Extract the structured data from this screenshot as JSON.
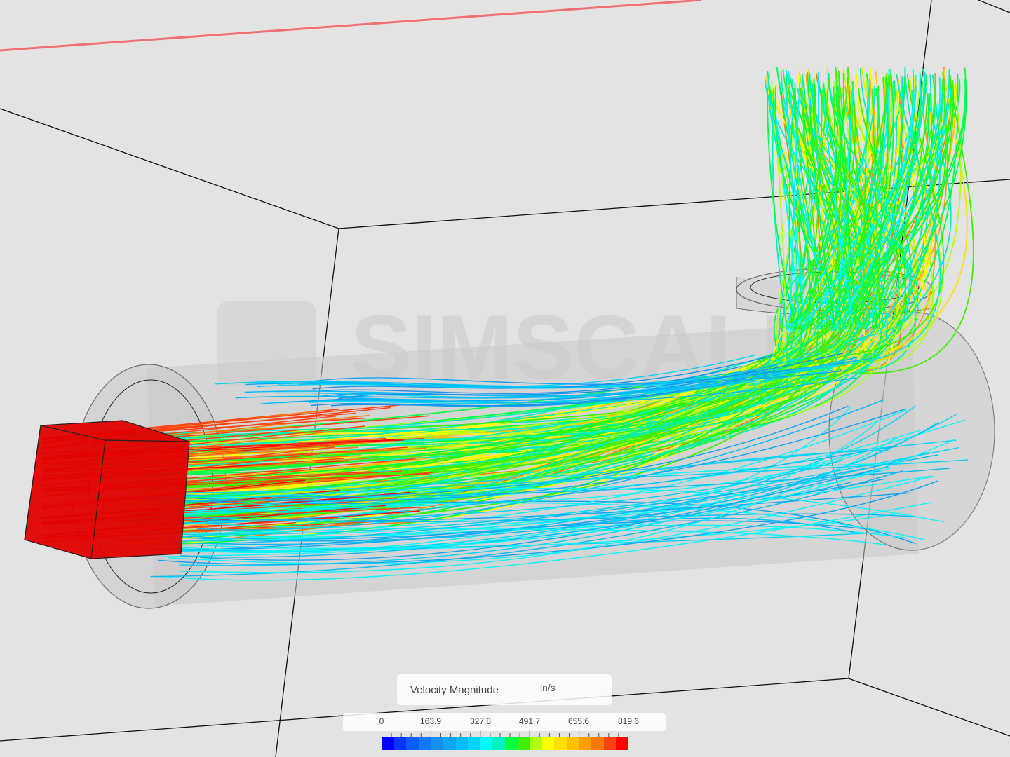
{
  "legend": {
    "title": "Velocity Magnitude",
    "unit": "in/s",
    "tick_labels": [
      "0",
      "163.9",
      "327.8",
      "491.7",
      "655.6",
      "819.6"
    ],
    "min": 0,
    "max": 819.6,
    "colors": [
      "#0000ff",
      "#0a36ff",
      "#0a5cff",
      "#0f78f8",
      "#1490f0",
      "#10a4f4",
      "#00bcf8",
      "#00d4f8",
      "#00f8ff",
      "#00f0c0",
      "#00ff40",
      "#40f000",
      "#b0ff10",
      "#ffff00",
      "#ffe000",
      "#ffc000",
      "#ffa000",
      "#ff7800",
      "#ff4010",
      "#ff0000"
    ]
  },
  "watermark": "SIMSCALE",
  "scene": {
    "background": "#e3e3e3",
    "inlet_color": "#e00000",
    "pipe_color": "#c8c8c8"
  }
}
